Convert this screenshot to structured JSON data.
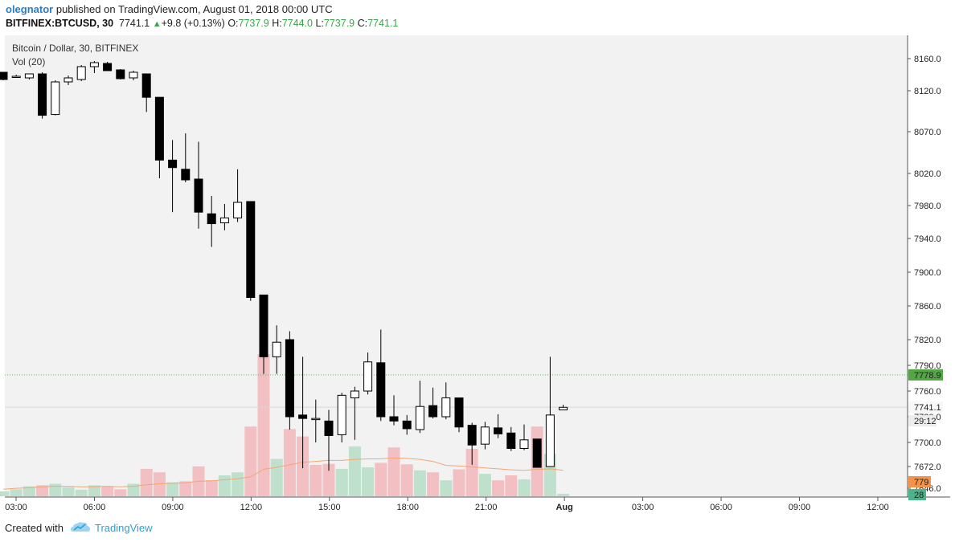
{
  "header": {
    "author": "olegnator",
    "published_text": " published on TradingView.com, August 01, 2018 00:00 UTC",
    "symbol": "BITFINEX:BTCUSD, 30",
    "last": "7741.1",
    "up_symbol": "▲",
    "change": "+9.8 (+0.13%)",
    "o_label": "O:",
    "o_value": "7737.9",
    "h_label": "H:",
    "h_value": "7744.0",
    "l_label": "L:",
    "l_value": "7737.9",
    "c_label": "C:",
    "c_value": "7741.1"
  },
  "footer": {
    "created": "Created with",
    "brand": "TradingView",
    "logo_icon": "tradingview-cloud-icon"
  },
  "colors": {
    "up_body": "#ffffff",
    "down_body": "#000000",
    "candle_outline": "#000000",
    "vol_up": "#bfe0cc",
    "vol_down": "#f2bfc3",
    "vol_ma": "#f6a572",
    "plot_bg": "#f2f2f2",
    "dotted_line": "#5db95d",
    "green_label": "#53a546",
    "orange_label": "#f4924a",
    "teal_label": "#4db389"
  },
  "chart_data": {
    "type": "candlestick",
    "title": "Bitcoin / Dollar, 30, BITFINEX",
    "volume_legend": "Vol (20)",
    "y_ticks": [
      "8160.0",
      "8120.0",
      "8070.0",
      "8020.0",
      "7980.0",
      "7940.0",
      "7900.0",
      "7860.0",
      "7820.0",
      "7790.0",
      "7760.0",
      "7730.0",
      "7700.0",
      "7672.0",
      "7646.0"
    ],
    "x_ticks": [
      "03:00",
      "06:00",
      "09:00",
      "12:00",
      "15:00",
      "18:00",
      "21:00",
      "Aug",
      "03:00",
      "06:00",
      "09:00",
      "12:00"
    ],
    "price_labels": {
      "dotted": "7778.9",
      "last": "7741.1",
      "countdown": "29:12",
      "volume_ma": "779",
      "volume_last": "28"
    },
    "reference_lines": {
      "dotted_level": 7778.9,
      "last_level": 7741.1
    },
    "candles": [
      {
        "o": 8143,
        "h": 8143,
        "l": 8133,
        "c": 8134
      },
      {
        "o": 8138,
        "h": 8140,
        "l": 8137,
        "c": 8138
      },
      {
        "o": 8136,
        "h": 8141,
        "l": 8134,
        "c": 8141
      },
      {
        "o": 8141,
        "h": 8143,
        "l": 8086,
        "c": 8090
      },
      {
        "o": 8091,
        "h": 8133,
        "l": 8090,
        "c": 8131
      },
      {
        "o": 8131,
        "h": 8139,
        "l": 8127,
        "c": 8136
      },
      {
        "o": 8134,
        "h": 8152,
        "l": 8132,
        "c": 8150
      },
      {
        "o": 8150,
        "h": 8157,
        "l": 8142,
        "c": 8155
      },
      {
        "o": 8154,
        "h": 8156,
        "l": 8145,
        "c": 8145
      },
      {
        "o": 8146,
        "h": 8147,
        "l": 8134,
        "c": 8135
      },
      {
        "o": 8136,
        "h": 8145,
        "l": 8133,
        "c": 8143
      },
      {
        "o": 8141,
        "h": 8141,
        "l": 8094,
        "c": 8112
      },
      {
        "o": 8112,
        "h": 8112,
        "l": 8014,
        "c": 8036
      },
      {
        "o": 8036,
        "h": 8060,
        "l": 7972,
        "c": 8027
      },
      {
        "o": 8025,
        "h": 8068,
        "l": 8009,
        "c": 8012
      },
      {
        "o": 8013,
        "h": 8058,
        "l": 7952,
        "c": 7972
      },
      {
        "o": 7970,
        "h": 7992,
        "l": 7930,
        "c": 7958
      },
      {
        "o": 7959,
        "h": 7982,
        "l": 7950,
        "c": 7965
      },
      {
        "o": 7965,
        "h": 8025,
        "l": 7960,
        "c": 7984
      },
      {
        "o": 7985,
        "h": 7985,
        "l": 7866,
        "c": 7870
      },
      {
        "o": 7873,
        "h": 7873,
        "l": 7780,
        "c": 7800
      },
      {
        "o": 7800,
        "h": 7837,
        "l": 7780,
        "c": 7817
      },
      {
        "o": 7820,
        "h": 7830,
        "l": 7715,
        "c": 7730
      },
      {
        "o": 7732,
        "h": 7800,
        "l": 7670,
        "c": 7728
      },
      {
        "o": 7728,
        "h": 7750,
        "l": 7700,
        "c": 7728
      },
      {
        "o": 7725,
        "h": 7738,
        "l": 7667,
        "c": 7708
      },
      {
        "o": 7709,
        "h": 7758,
        "l": 7700,
        "c": 7755
      },
      {
        "o": 7752,
        "h": 7765,
        "l": 7703,
        "c": 7760
      },
      {
        "o": 7760,
        "h": 7805,
        "l": 7756,
        "c": 7794
      },
      {
        "o": 7793,
        "h": 7832,
        "l": 7725,
        "c": 7730
      },
      {
        "o": 7730,
        "h": 7755,
        "l": 7720,
        "c": 7725
      },
      {
        "o": 7725,
        "h": 7732,
        "l": 7709,
        "c": 7716
      },
      {
        "o": 7715,
        "h": 7772,
        "l": 7711,
        "c": 7742
      },
      {
        "o": 7743,
        "h": 7764,
        "l": 7728,
        "c": 7730
      },
      {
        "o": 7730,
        "h": 7770,
        "l": 7727,
        "c": 7752
      },
      {
        "o": 7752,
        "h": 7752,
        "l": 7712,
        "c": 7718
      },
      {
        "o": 7720,
        "h": 7723,
        "l": 7674,
        "c": 7697
      },
      {
        "o": 7698,
        "h": 7724,
        "l": 7692,
        "c": 7718
      },
      {
        "o": 7717,
        "h": 7733,
        "l": 7705,
        "c": 7710
      },
      {
        "o": 7711,
        "h": 7718,
        "l": 7690,
        "c": 7693
      },
      {
        "o": 7693,
        "h": 7721,
        "l": 7691,
        "c": 7703
      },
      {
        "o": 7704,
        "h": 7704,
        "l": 7671,
        "c": 7671
      },
      {
        "o": 7672,
        "h": 7800,
        "l": 7672,
        "c": 7732
      },
      {
        "o": 7738,
        "h": 7744,
        "l": 7738,
        "c": 7741
      }
    ],
    "volume": {
      "values": [
        10,
        14,
        20,
        22,
        25,
        18,
        13,
        22,
        20,
        14,
        25,
        55,
        48,
        28,
        30,
        60,
        32,
        42,
        48,
        140,
        285,
        75,
        135,
        120,
        63,
        65,
        55,
        100,
        58,
        67,
        98,
        64,
        52,
        48,
        32,
        54,
        95,
        45,
        32,
        42,
        34,
        140,
        85,
        5
      ],
      "up": [
        true,
        true,
        true,
        false,
        true,
        true,
        true,
        true,
        false,
        false,
        true,
        false,
        false,
        true,
        false,
        false,
        false,
        true,
        true,
        false,
        false,
        true,
        false,
        false,
        false,
        false,
        true,
        true,
        true,
        false,
        false,
        false,
        true,
        false,
        true,
        false,
        false,
        true,
        false,
        false,
        true,
        false,
        true,
        true
      ],
      "ma": [
        14,
        16,
        17,
        19,
        20,
        20,
        19,
        19,
        20,
        19,
        20,
        23,
        25,
        26,
        27,
        30,
        31,
        33,
        35,
        39,
        54,
        58,
        63,
        68,
        70,
        72,
        72,
        74,
        75,
        75,
        77,
        76,
        74,
        70,
        62,
        61,
        59,
        57,
        55,
        53,
        52,
        54,
        55,
        52
      ]
    }
  }
}
